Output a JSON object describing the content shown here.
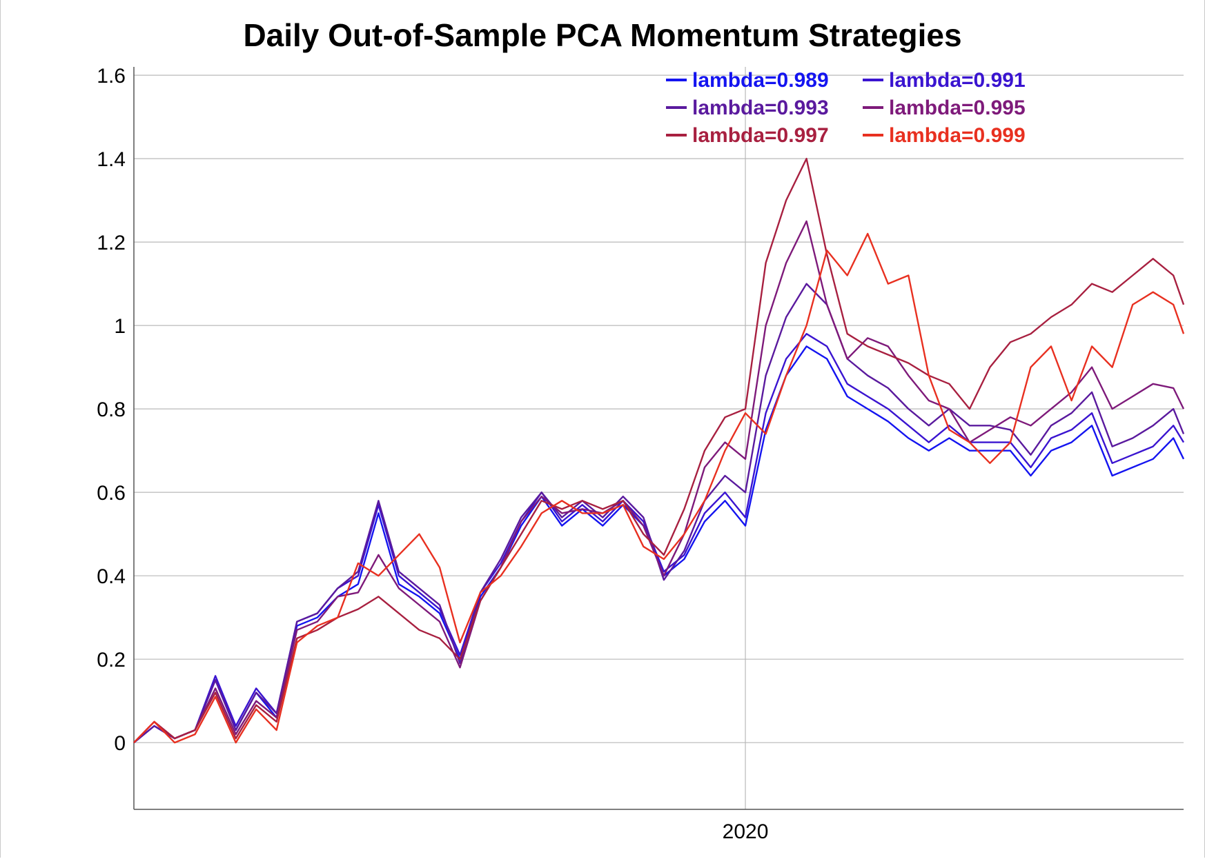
{
  "chart_data": {
    "type": "line",
    "title": "Daily Out-of-Sample PCA Momentum Strategies",
    "xlabel": "",
    "ylabel": "",
    "ylim": [
      -0.16,
      1.62
    ],
    "yticks": [
      "0",
      "0.2",
      "0.4",
      "0.6",
      "0.8",
      "1",
      "1.2",
      "1.4",
      "1.6"
    ],
    "x_tick_labels": [
      "2020"
    ],
    "x_range": [
      2017.0,
      2022.15
    ],
    "grid": true,
    "legend_position": "top-right",
    "x": [
      2017.0,
      2017.1,
      2017.2,
      2017.3,
      2017.4,
      2017.5,
      2017.6,
      2017.7,
      2017.8,
      2017.9,
      2018.0,
      2018.1,
      2018.2,
      2018.3,
      2018.4,
      2018.5,
      2018.6,
      2018.7,
      2018.8,
      2018.9,
      2019.0,
      2019.1,
      2019.2,
      2019.3,
      2019.4,
      2019.5,
      2019.6,
      2019.7,
      2019.8,
      2019.9,
      2020.0,
      2020.1,
      2020.2,
      2020.3,
      2020.4,
      2020.5,
      2020.6,
      2020.7,
      2020.8,
      2020.9,
      2021.0,
      2021.1,
      2021.2,
      2021.3,
      2021.4,
      2021.5,
      2021.6,
      2021.7,
      2021.8,
      2021.9,
      2022.0,
      2022.1,
      2022.15
    ],
    "series": [
      {
        "name": "lambda=0.989",
        "color": "#1414f0",
        "values": [
          0.0,
          0.04,
          0.01,
          0.03,
          0.15,
          0.03,
          0.12,
          0.06,
          0.28,
          0.3,
          0.35,
          0.38,
          0.55,
          0.38,
          0.35,
          0.31,
          0.2,
          0.35,
          0.42,
          0.52,
          0.59,
          0.52,
          0.56,
          0.52,
          0.57,
          0.52,
          0.4,
          0.44,
          0.53,
          0.58,
          0.52,
          0.75,
          0.88,
          0.95,
          0.92,
          0.83,
          0.8,
          0.77,
          0.73,
          0.7,
          0.73,
          0.7,
          0.7,
          0.7,
          0.64,
          0.7,
          0.72,
          0.76,
          0.64,
          0.66,
          0.68,
          0.73,
          0.68
        ]
      },
      {
        "name": "lambda=0.991",
        "color": "#3a14d0",
        "values": [
          0.0,
          0.04,
          0.01,
          0.03,
          0.16,
          0.04,
          0.13,
          0.07,
          0.29,
          0.31,
          0.37,
          0.4,
          0.57,
          0.4,
          0.36,
          0.32,
          0.21,
          0.36,
          0.43,
          0.53,
          0.6,
          0.53,
          0.57,
          0.53,
          0.58,
          0.53,
          0.41,
          0.45,
          0.55,
          0.6,
          0.54,
          0.79,
          0.92,
          0.98,
          0.95,
          0.86,
          0.83,
          0.8,
          0.76,
          0.72,
          0.76,
          0.72,
          0.72,
          0.72,
          0.66,
          0.73,
          0.75,
          0.79,
          0.67,
          0.69,
          0.71,
          0.76,
          0.72
        ]
      },
      {
        "name": "lambda=0.993",
        "color": "#5a1a9e",
        "values": [
          0.0,
          0.04,
          0.01,
          0.03,
          0.15,
          0.03,
          0.12,
          0.07,
          0.29,
          0.31,
          0.37,
          0.41,
          0.58,
          0.41,
          0.37,
          0.33,
          0.19,
          0.36,
          0.44,
          0.54,
          0.6,
          0.54,
          0.58,
          0.54,
          0.59,
          0.54,
          0.39,
          0.46,
          0.58,
          0.64,
          0.6,
          0.88,
          1.02,
          1.1,
          1.05,
          0.92,
          0.88,
          0.85,
          0.8,
          0.76,
          0.8,
          0.76,
          0.76,
          0.75,
          0.69,
          0.76,
          0.79,
          0.84,
          0.71,
          0.73,
          0.76,
          0.8,
          0.74
        ]
      },
      {
        "name": "lambda=0.995",
        "color": "#7e1a7a",
        "values": [
          0.0,
          0.05,
          0.01,
          0.03,
          0.13,
          0.02,
          0.1,
          0.06,
          0.27,
          0.29,
          0.35,
          0.36,
          0.45,
          0.37,
          0.33,
          0.29,
          0.18,
          0.34,
          0.42,
          0.53,
          0.59,
          0.55,
          0.56,
          0.55,
          0.58,
          0.52,
          0.4,
          0.5,
          0.66,
          0.72,
          0.68,
          1.0,
          1.15,
          1.25,
          1.05,
          0.92,
          0.97,
          0.95,
          0.88,
          0.82,
          0.8,
          0.72,
          0.75,
          0.78,
          0.76,
          0.8,
          0.84,
          0.9,
          0.8,
          0.83,
          0.86,
          0.85,
          0.8
        ]
      },
      {
        "name": "lambda=0.997",
        "color": "#a82040",
        "values": [
          0.0,
          0.05,
          0.01,
          0.03,
          0.12,
          0.01,
          0.09,
          0.05,
          0.25,
          0.27,
          0.3,
          0.32,
          0.35,
          0.31,
          0.27,
          0.25,
          0.2,
          0.34,
          0.42,
          0.5,
          0.58,
          0.56,
          0.58,
          0.56,
          0.58,
          0.5,
          0.45,
          0.56,
          0.7,
          0.78,
          0.8,
          1.15,
          1.3,
          1.4,
          1.17,
          0.98,
          0.95,
          0.93,
          0.91,
          0.88,
          0.86,
          0.8,
          0.9,
          0.96,
          0.98,
          1.02,
          1.05,
          1.1,
          1.08,
          1.12,
          1.16,
          1.12,
          1.05
        ]
      },
      {
        "name": "lambda=0.999",
        "color": "#e83020",
        "values": [
          0.0,
          0.05,
          0.0,
          0.02,
          0.11,
          0.0,
          0.08,
          0.03,
          0.24,
          0.28,
          0.3,
          0.43,
          0.4,
          0.45,
          0.5,
          0.42,
          0.24,
          0.36,
          0.4,
          0.47,
          0.55,
          0.58,
          0.55,
          0.55,
          0.57,
          0.47,
          0.44,
          0.5,
          0.58,
          0.7,
          0.79,
          0.74,
          0.88,
          1.0,
          1.18,
          1.12,
          1.22,
          1.1,
          1.12,
          0.88,
          0.75,
          0.72,
          0.67,
          0.72,
          0.9,
          0.95,
          0.82,
          0.95,
          0.9,
          1.05,
          1.08,
          1.05,
          0.98
        ]
      }
    ]
  }
}
